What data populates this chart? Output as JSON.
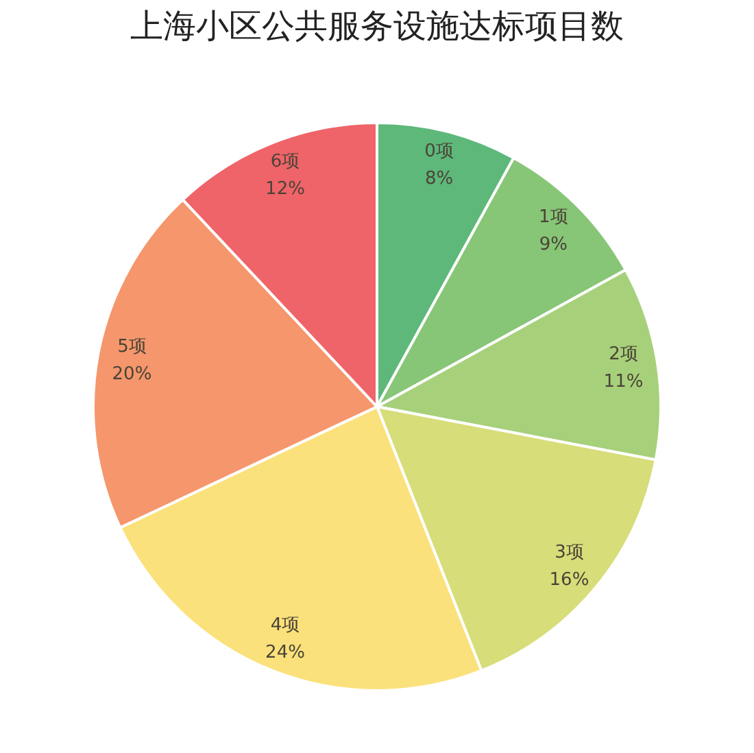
{
  "chart_data": {
    "type": "pie",
    "title": "上海小区公共服务设施达标项目数",
    "categories": [
      "0项",
      "1项",
      "2项",
      "3项",
      "4项",
      "5项",
      "6项"
    ],
    "values": [
      8,
      9,
      11,
      16,
      24,
      20,
      12
    ],
    "colors": [
      "#5db87a",
      "#87c577",
      "#a7d07b",
      "#d7dd79",
      "#fbe17b",
      "#f5966c",
      "#ef6469"
    ],
    "value_labels": [
      "8%",
      "9%",
      "11%",
      "16%",
      "24%",
      "20%",
      "12%"
    ],
    "legend": false
  }
}
